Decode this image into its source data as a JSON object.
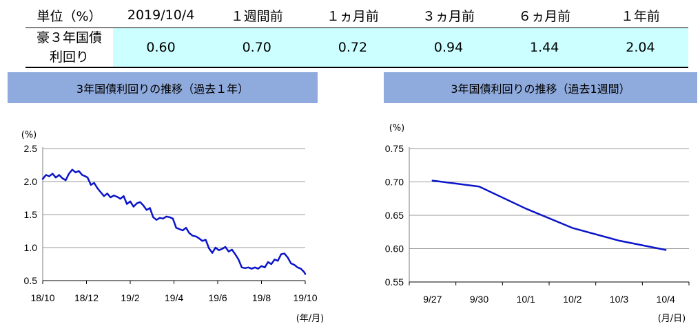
{
  "table": {
    "header": [
      "単位（%）",
      "2019/10/4",
      "１週間前",
      "１ヵ月前",
      "３ヵ月前",
      "６ヵ月前",
      "１年前"
    ],
    "row_label": [
      "豪３年国債",
      "利回り"
    ],
    "values": [
      "0.60",
      "0.70",
      "0.72",
      "0.94",
      "1.44",
      "2.04"
    ]
  },
  "colors": {
    "header_bg": "#8faadc",
    "value_bg": "#ccffff",
    "line": "#0a14c8",
    "grid": "#9a9a9a"
  },
  "chart_data": [
    {
      "type": "line",
      "title": "3年国債利回りの推移（過去１年）",
      "ylabel": "(%)",
      "xlabel": "(年/月)",
      "ylim": [
        0.5,
        2.5
      ],
      "yticks": [
        0.5,
        1.0,
        1.5,
        2.0,
        2.5
      ],
      "ytick_labels": [
        "0.5",
        "1.0",
        "1.5",
        "2.0",
        "2.5"
      ],
      "xlim": [
        0,
        12
      ],
      "xticks": [
        0,
        2,
        4,
        6,
        8,
        10,
        12
      ],
      "xtick_labels": [
        "18/10",
        "18/12",
        "19/2",
        "19/4",
        "19/6",
        "19/8",
        "19/10"
      ],
      "grid": true,
      "series": [
        {
          "x": [
            0.0,
            0.15,
            0.3,
            0.45,
            0.6,
            0.75,
            0.9,
            1.05,
            1.2,
            1.35,
            1.5,
            1.65,
            1.8,
            1.95,
            2.05,
            2.2,
            2.35,
            2.5,
            2.65,
            2.8,
            2.95,
            3.1,
            3.25,
            3.4,
            3.55,
            3.7,
            3.85,
            4.0,
            4.15,
            4.3,
            4.45,
            4.6,
            4.75,
            4.9,
            5.05,
            5.2,
            5.35,
            5.5,
            5.65,
            5.8,
            5.95,
            6.1,
            6.25,
            6.4,
            6.55,
            6.7,
            6.85,
            7.0,
            7.15,
            7.3,
            7.45,
            7.6,
            7.75,
            7.9,
            8.05,
            8.2,
            8.35,
            8.5,
            8.65,
            8.8,
            8.95,
            9.1,
            9.25,
            9.4,
            9.55,
            9.7,
            9.85,
            10.0,
            10.15,
            10.3,
            10.45,
            10.6,
            10.75,
            10.9,
            11.05,
            11.2,
            11.35,
            11.5,
            11.65,
            11.8,
            11.95,
            12.0
          ],
          "y": [
            2.04,
            2.1,
            2.08,
            2.12,
            2.06,
            2.1,
            2.05,
            2.02,
            2.12,
            2.18,
            2.14,
            2.16,
            2.1,
            2.08,
            2.06,
            1.95,
            1.98,
            1.9,
            1.84,
            1.78,
            1.82,
            1.76,
            1.79,
            1.77,
            1.74,
            1.78,
            1.66,
            1.7,
            1.62,
            1.67,
            1.69,
            1.64,
            1.57,
            1.6,
            1.46,
            1.42,
            1.45,
            1.44,
            1.47,
            1.46,
            1.44,
            1.3,
            1.28,
            1.26,
            1.3,
            1.22,
            1.18,
            1.17,
            1.14,
            1.1,
            1.12,
            0.99,
            0.92,
            1.0,
            0.96,
            0.98,
            1.01,
            0.94,
            0.97,
            0.9,
            0.82,
            0.7,
            0.69,
            0.7,
            0.68,
            0.7,
            0.68,
            0.72,
            0.7,
            0.78,
            0.75,
            0.82,
            0.8,
            0.9,
            0.91,
            0.85,
            0.76,
            0.74,
            0.7,
            0.68,
            0.63,
            0.6
          ]
        }
      ]
    },
    {
      "type": "line",
      "title": "3年国債利回りの推移（過去1週間）",
      "ylabel": "(%)",
      "xlabel": "(月/日)",
      "categories": [
        "9/27",
        "9/30",
        "10/1",
        "10/2",
        "10/3",
        "10/4"
      ],
      "ylim": [
        0.55,
        0.75
      ],
      "yticks": [
        0.55,
        0.6,
        0.65,
        0.7,
        0.75
      ],
      "ytick_labels": [
        "0.55",
        "0.60",
        "0.65",
        "0.70",
        "0.75"
      ],
      "grid": true,
      "series": [
        {
          "values": [
            0.702,
            0.693,
            0.66,
            0.631,
            0.612,
            0.598
          ]
        }
      ]
    }
  ]
}
